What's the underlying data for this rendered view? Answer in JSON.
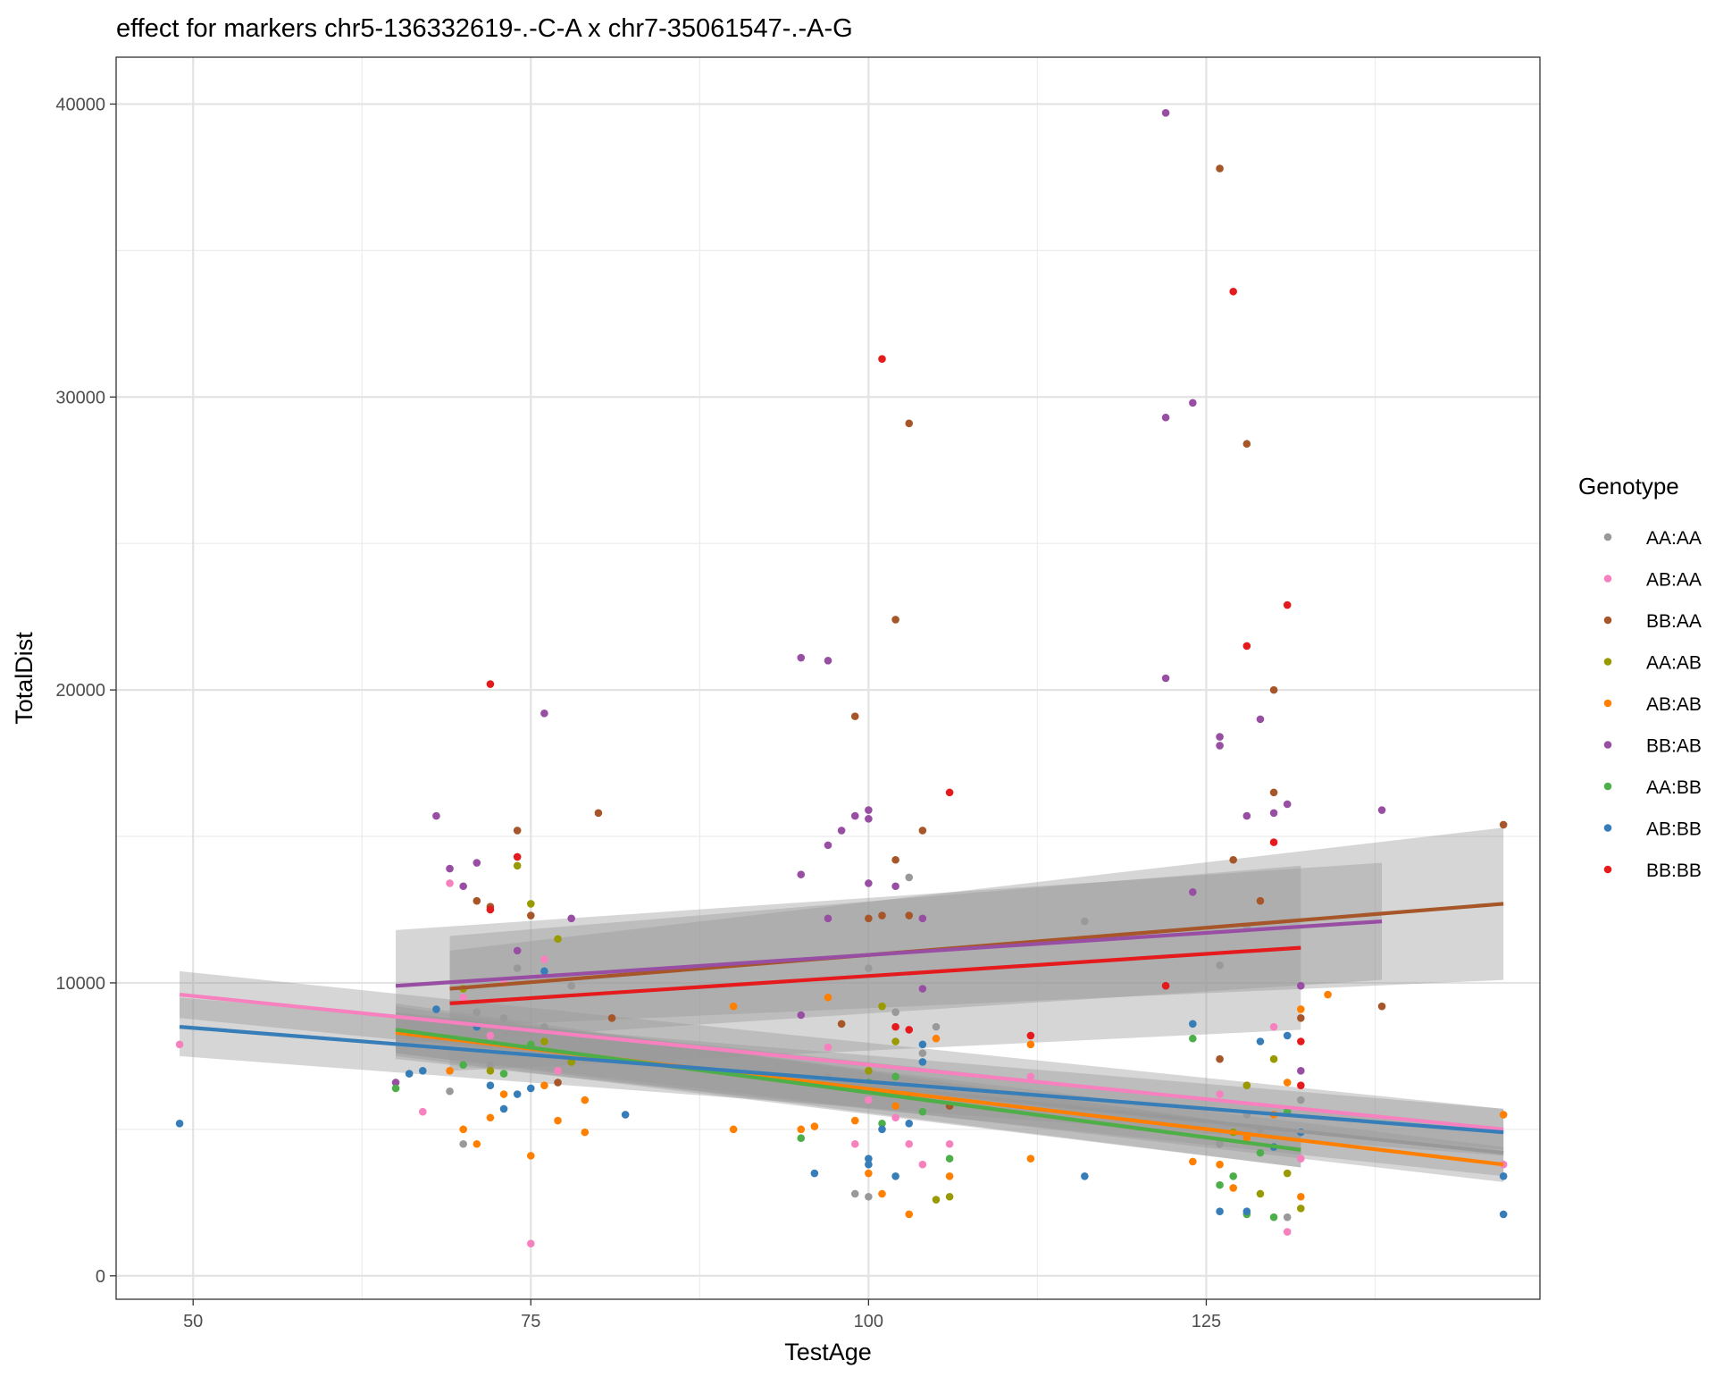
{
  "chart_data": {
    "type": "scatter",
    "title": "effect for markers chr5-136332619-.-C-A x chr7-35061547-.-A-G",
    "xlabel": "TestAge",
    "ylabel": "TotalDist",
    "xlim": [
      44.3,
      149.7
    ],
    "ylim": [
      -800,
      41600
    ],
    "x_ticks": [
      50,
      75,
      100,
      125
    ],
    "y_ticks": [
      0,
      10000,
      20000,
      30000,
      40000
    ],
    "y_tick_labels": [
      "0",
      "10000",
      "20000",
      "30000",
      "40000"
    ],
    "grid": true,
    "legend": {
      "title": "Genotype",
      "position": "right"
    },
    "series": [
      {
        "name": "AA:AA",
        "color": "#999999",
        "points": [
          [
            69,
            6300
          ],
          [
            70,
            4500
          ],
          [
            71,
            9000
          ],
          [
            72,
            7200
          ],
          [
            73,
            8800
          ],
          [
            74,
            10500
          ],
          [
            75,
            7700
          ],
          [
            76,
            8500
          ],
          [
            78,
            9900
          ],
          [
            97,
            6800
          ],
          [
            99,
            2800
          ],
          [
            100,
            2700
          ],
          [
            100,
            10500
          ],
          [
            102,
            9000
          ],
          [
            103,
            13600
          ],
          [
            104,
            7600
          ],
          [
            105,
            8500
          ],
          [
            116,
            12100
          ],
          [
            126,
            10600
          ],
          [
            128,
            11900
          ],
          [
            129,
            5000
          ],
          [
            131,
            2000
          ],
          [
            132,
            6000
          ],
          [
            128,
            5500
          ],
          [
            126,
            4500
          ]
        ],
        "fit": {
          "x": [
            65,
            147
          ],
          "y": [
            8200,
            4200
          ],
          "ci": [
            [
              65,
              7400,
              9000
            ],
            [
              147,
              3400,
              5000
            ]
          ]
        }
      },
      {
        "name": "AB:AA",
        "color": "#F781BF",
        "points": [
          [
            49,
            7900
          ],
          [
            67,
            5600
          ],
          [
            69,
            13400
          ],
          [
            70,
            9500
          ],
          [
            72,
            8200
          ],
          [
            73,
            10000
          ],
          [
            75,
            1100
          ],
          [
            76,
            10800
          ],
          [
            77,
            7000
          ],
          [
            97,
            7800
          ],
          [
            99,
            4500
          ],
          [
            100,
            6000
          ],
          [
            102,
            5400
          ],
          [
            103,
            4500
          ],
          [
            104,
            3800
          ],
          [
            106,
            4500
          ],
          [
            112,
            6800
          ],
          [
            126,
            6200
          ],
          [
            128,
            6500
          ],
          [
            130,
            8500
          ],
          [
            131,
            1500
          ],
          [
            132,
            4000
          ],
          [
            147,
            3800
          ]
        ],
        "fit": {
          "x": [
            49,
            147
          ],
          "y": [
            9600,
            5000
          ],
          "ci": [
            [
              49,
              8800,
              10400
            ],
            [
              147,
              4300,
              5700
            ]
          ]
        }
      },
      {
        "name": "BB:AA",
        "color": "#A65628",
        "points": [
          [
            71,
            12800
          ],
          [
            72,
            12600
          ],
          [
            74,
            15200
          ],
          [
            75,
            12300
          ],
          [
            77,
            6600
          ],
          [
            80,
            15800
          ],
          [
            81,
            8800
          ],
          [
            98,
            8600
          ],
          [
            99,
            19100
          ],
          [
            100,
            12200
          ],
          [
            101,
            12300
          ],
          [
            102,
            22400
          ],
          [
            102,
            14200
          ],
          [
            103,
            29100
          ],
          [
            103,
            12300
          ],
          [
            104,
            15200
          ],
          [
            106,
            5800
          ],
          [
            126,
            37800
          ],
          [
            126,
            7400
          ],
          [
            127,
            14200
          ],
          [
            128,
            28400
          ],
          [
            129,
            12800
          ],
          [
            130,
            20000
          ],
          [
            130,
            16500
          ],
          [
            132,
            8800
          ],
          [
            138,
            9200
          ],
          [
            147,
            15400
          ]
        ],
        "fit": {
          "x": [
            69,
            147
          ],
          "y": [
            9800,
            12700
          ],
          "ci": [
            [
              69,
              8500,
              11100
            ],
            [
              147,
              10100,
              15300
            ]
          ]
        }
      },
      {
        "name": "AA:AB",
        "color": "#999900",
        "points": [
          [
            70,
            9800
          ],
          [
            72,
            7000
          ],
          [
            74,
            14000
          ],
          [
            75,
            12700
          ],
          [
            76,
            8000
          ],
          [
            77,
            11500
          ],
          [
            78,
            7300
          ],
          [
            100,
            7000
          ],
          [
            101,
            9200
          ],
          [
            102,
            8000
          ],
          [
            103,
            6200
          ],
          [
            105,
            2600
          ],
          [
            106,
            2700
          ],
          [
            127,
            4900
          ],
          [
            128,
            6500
          ],
          [
            129,
            2800
          ],
          [
            130,
            7400
          ],
          [
            131,
            3500
          ],
          [
            132,
            2300
          ]
        ],
        "fit": {
          "x": [
            65,
            132
          ],
          "y": [
            8400,
            4300
          ],
          "ci": [
            [
              65,
              7500,
              9300
            ],
            [
              132,
              3700,
              4900
            ]
          ]
        }
      },
      {
        "name": "AB:AB",
        "color": "#FF7F00",
        "points": [
          [
            69,
            7000
          ],
          [
            70,
            5000
          ],
          [
            71,
            4500
          ],
          [
            72,
            5400
          ],
          [
            73,
            6200
          ],
          [
            75,
            4100
          ],
          [
            76,
            6500
          ],
          [
            77,
            5300
          ],
          [
            79,
            4900
          ],
          [
            79,
            6000
          ],
          [
            90,
            5000
          ],
          [
            90,
            9200
          ],
          [
            95,
            5000
          ],
          [
            96,
            5100
          ],
          [
            97,
            9500
          ],
          [
            99,
            5300
          ],
          [
            100,
            3500
          ],
          [
            101,
            2800
          ],
          [
            102,
            5800
          ],
          [
            103,
            2100
          ],
          [
            105,
            8100
          ],
          [
            106,
            3400
          ],
          [
            112,
            4000
          ],
          [
            112,
            7900
          ],
          [
            124,
            3900
          ],
          [
            126,
            3800
          ],
          [
            127,
            3000
          ],
          [
            128,
            4700
          ],
          [
            130,
            5500
          ],
          [
            131,
            6600
          ],
          [
            132,
            2700
          ],
          [
            132,
            9100
          ],
          [
            134,
            9600
          ],
          [
            147,
            5500
          ]
        ],
        "fit": {
          "x": [
            65,
            147
          ],
          "y": [
            8300,
            3800
          ],
          "ci": [
            [
              65,
              7600,
              9000
            ],
            [
              147,
              3200,
              4400
            ]
          ]
        }
      },
      {
        "name": "BB:AB",
        "color": "#984EA3",
        "points": [
          [
            65,
            6600
          ],
          [
            68,
            15700
          ],
          [
            69,
            13900
          ],
          [
            70,
            13300
          ],
          [
            71,
            14100
          ],
          [
            74,
            11100
          ],
          [
            76,
            19200
          ],
          [
            78,
            12200
          ],
          [
            95,
            21100
          ],
          [
            95,
            13700
          ],
          [
            95,
            8900
          ],
          [
            97,
            21000
          ],
          [
            97,
            14700
          ],
          [
            97,
            12200
          ],
          [
            98,
            15200
          ],
          [
            99,
            15700
          ],
          [
            100,
            15900
          ],
          [
            100,
            15600
          ],
          [
            100,
            13400
          ],
          [
            102,
            13300
          ],
          [
            104,
            12200
          ],
          [
            104,
            9800
          ],
          [
            122,
            39700
          ],
          [
            122,
            29300
          ],
          [
            122,
            20400
          ],
          [
            124,
            29800
          ],
          [
            124,
            13100
          ],
          [
            126,
            18400
          ],
          [
            126,
            18100
          ],
          [
            128,
            15700
          ],
          [
            129,
            19000
          ],
          [
            130,
            15800
          ],
          [
            131,
            16100
          ],
          [
            132,
            9900
          ],
          [
            132,
            7000
          ],
          [
            138,
            15900
          ]
        ],
        "fit": {
          "x": [
            65,
            138
          ],
          "y": [
            9900,
            12100
          ],
          "ci": [
            [
              65,
              7900,
              11800
            ],
            [
              138,
              10100,
              14100
            ]
          ]
        }
      },
      {
        "name": "AA:BB",
        "color": "#4DAF4A",
        "points": [
          [
            65,
            6400
          ],
          [
            70,
            7200
          ],
          [
            73,
            6900
          ],
          [
            75,
            7900
          ],
          [
            95,
            4700
          ],
          [
            100,
            6600
          ],
          [
            101,
            5200
          ],
          [
            102,
            6800
          ],
          [
            104,
            5600
          ],
          [
            106,
            4000
          ],
          [
            124,
            8100
          ],
          [
            126,
            3100
          ],
          [
            127,
            3400
          ],
          [
            128,
            2100
          ],
          [
            129,
            4200
          ],
          [
            130,
            2000
          ],
          [
            131,
            5600
          ]
        ],
        "fit": {
          "x": [
            65,
            132
          ],
          "y": [
            8400,
            4300
          ],
          "ci": [
            [
              65,
              7600,
              9200
            ],
            [
              132,
              3700,
              4900
            ]
          ]
        }
      },
      {
        "name": "AB:BB",
        "color": "#377EB8",
        "points": [
          [
            49,
            5200
          ],
          [
            66,
            6900
          ],
          [
            67,
            7000
          ],
          [
            68,
            9100
          ],
          [
            71,
            8500
          ],
          [
            72,
            6500
          ],
          [
            73,
            5700
          ],
          [
            74,
            6200
          ],
          [
            75,
            6400
          ],
          [
            76,
            10400
          ],
          [
            82,
            5500
          ],
          [
            96,
            3500
          ],
          [
            100,
            3800
          ],
          [
            100,
            4000
          ],
          [
            101,
            5000
          ],
          [
            102,
            3400
          ],
          [
            103,
            5200
          ],
          [
            104,
            7900
          ],
          [
            104,
            7300
          ],
          [
            116,
            3400
          ],
          [
            124,
            8600
          ],
          [
            126,
            2200
          ],
          [
            128,
            2200
          ],
          [
            129,
            8000
          ],
          [
            130,
            4400
          ],
          [
            131,
            8200
          ],
          [
            132,
            4900
          ],
          [
            147,
            3400
          ],
          [
            147,
            2100
          ]
        ],
        "fit": {
          "x": [
            49,
            147
          ],
          "y": [
            8500,
            4900
          ],
          "ci": [
            [
              49,
              7500,
              9500
            ],
            [
              147,
              4100,
              5700
            ]
          ]
        }
      },
      {
        "name": "BB:BB",
        "color": "#E41A1C",
        "points": [
          [
            72,
            20200
          ],
          [
            74,
            14300
          ],
          [
            72,
            12500
          ],
          [
            101,
            31300
          ],
          [
            102,
            8500
          ],
          [
            103,
            8400
          ],
          [
            106,
            16500
          ],
          [
            112,
            8200
          ],
          [
            122,
            9900
          ],
          [
            127,
            33600
          ],
          [
            128,
            21500
          ],
          [
            130,
            14800
          ],
          [
            131,
            22900
          ],
          [
            132,
            8000
          ],
          [
            132,
            6500
          ]
        ],
        "fit": {
          "x": [
            69,
            132
          ],
          "y": [
            9300,
            11200
          ],
          "ci": [
            [
              69,
              7000,
              11600
            ],
            [
              132,
              8400,
              14000
            ]
          ]
        }
      }
    ]
  }
}
